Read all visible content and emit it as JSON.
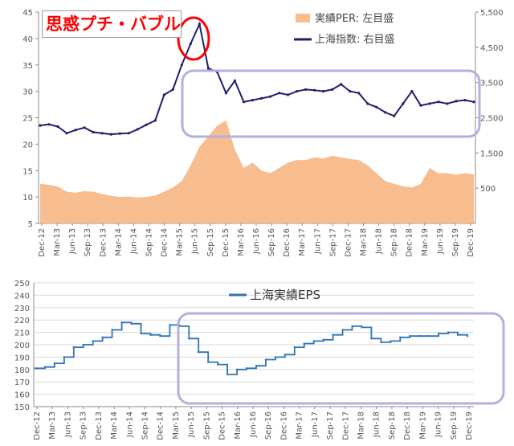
{
  "annotation_title": "思惑プチ・バブル",
  "colors": {
    "per_fill": "#f7bd8e",
    "index_line": "#1f1f6e",
    "eps_line": "#2e74b5",
    "highlight_box": "#b3b0de",
    "bubble_circle": "#ff0000",
    "grid": "#d9d9d9"
  },
  "chart_data": [
    {
      "type": "area",
      "title": "",
      "x_ticks": [
        "Dec-12",
        "Mar-13",
        "Jun-13",
        "Sep-13",
        "Dec-13",
        "Mar-14",
        "Jun-14",
        "Sep-14",
        "Dec-14",
        "Mar-15",
        "Jun-15",
        "Sep-15",
        "Dec-15",
        "Mar-16",
        "Jun-16",
        "Sep-16",
        "Dec-16",
        "Mar-17",
        "Jun-17",
        "Sep-17",
        "Dec-17",
        "Mar-18",
        "Jun-18",
        "Sep-18",
        "Dec-18",
        "Mar-19",
        "Jun-19",
        "Sep-19",
        "Dec-19"
      ],
      "y_left": {
        "ticks": [
          5,
          10,
          15,
          20,
          25,
          30,
          35,
          40,
          45
        ],
        "ylim": [
          5,
          45
        ]
      },
      "y_right": {
        "ticks": [
          500,
          1500,
          2500,
          3500,
          4500,
          5500
        ],
        "ylim": [
          -500,
          5500
        ]
      },
      "legend": [
        "実績PER: 左目盛",
        "上海指数: 右目盛"
      ],
      "legend_position": "top-right",
      "series": [
        {
          "name": "実績PER: 左目盛",
          "axis": "left",
          "kind": "area",
          "values": [
            12.5,
            12.3,
            12.0,
            11.0,
            10.8,
            11.1,
            11.0,
            10.6,
            10.2,
            10.0,
            10.1,
            9.9,
            10.0,
            10.3,
            11.0,
            11.8,
            13.0,
            16.0,
            19.5,
            21.5,
            23.5,
            24.5,
            19.0,
            15.5,
            16.5,
            15.0,
            14.5,
            15.5,
            16.5,
            17.0,
            17.0,
            17.5,
            17.3,
            17.8,
            17.5,
            17.2,
            17.0,
            16.0,
            14.5,
            13.0,
            12.5,
            12.0,
            11.8,
            12.5,
            15.5,
            14.5,
            14.5,
            14.2,
            14.5,
            14.3
          ]
        },
        {
          "name": "上海指数: 右目盛",
          "axis": "right",
          "kind": "line",
          "values": [
            2280,
            2310,
            2250,
            2060,
            2150,
            2220,
            2090,
            2060,
            2030,
            2050,
            2060,
            2170,
            2300,
            2420,
            3150,
            3300,
            4000,
            4600,
            5160,
            3900,
            3800,
            3200,
            3550,
            2950,
            3000,
            3050,
            3100,
            3200,
            3150,
            3250,
            3300,
            3280,
            3250,
            3300,
            3450,
            3250,
            3200,
            2900,
            2800,
            2650,
            2550,
            2900,
            3250,
            2850,
            2900,
            2950,
            2900,
            2970,
            3000,
            2950
          ]
        }
      ],
      "annotations": [
        "bubble-peak-circle",
        "post-2015-highlight-box"
      ]
    },
    {
      "type": "line",
      "title": "",
      "x_ticks": [
        "Dec-12",
        "Mar-13",
        "Jun-13",
        "Sep-13",
        "Dec-13",
        "Mar-14",
        "Jun-14",
        "Sep-14",
        "Dec-14",
        "Mar-15",
        "Jun-15",
        "Sep-15",
        "Dec-15",
        "Mar-16",
        "Jun-16",
        "Sep-16",
        "Dec-16",
        "Mar-17",
        "Jun-17",
        "Sep-17",
        "Dec-17",
        "Mar-18",
        "Jun-18",
        "Sep-18",
        "Dec-18",
        "Mar-19",
        "Jun-19",
        "Sep-19",
        "Dec-19"
      ],
      "y": {
        "ticks": [
          150,
          160,
          170,
          180,
          190,
          200,
          210,
          220,
          230,
          240,
          250
        ],
        "ylim": [
          150,
          250
        ]
      },
      "legend": [
        "上海実績EPS"
      ],
      "legend_position": "top",
      "series": [
        {
          "name": "上海実績EPS",
          "values": [
            181,
            182,
            185,
            190,
            198,
            200,
            203,
            206,
            212,
            218,
            217,
            209,
            208,
            207,
            216,
            215,
            205,
            194,
            186,
            184,
            176,
            180,
            181,
            183,
            188,
            190,
            192,
            198,
            201,
            203,
            204,
            208,
            212,
            215,
            214,
            205,
            202,
            203,
            206,
            207,
            207,
            207,
            209,
            210,
            208,
            207
          ]
        }
      ],
      "annotations": [
        "post-2015-highlight-box"
      ]
    }
  ]
}
